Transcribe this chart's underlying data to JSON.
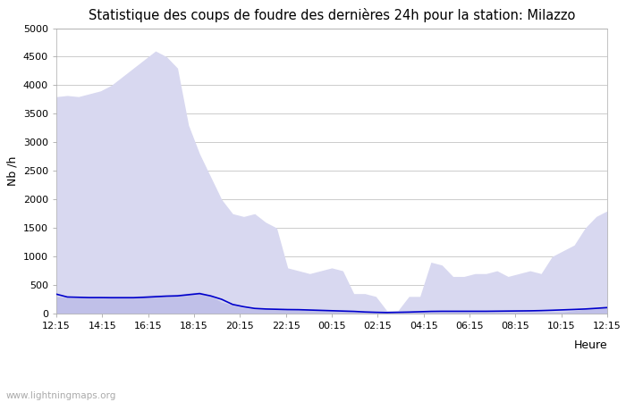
{
  "title": "Statistique des coups de foudre des dernières 24h pour la station: Milazzo",
  "xlabel": "Heure",
  "ylabel": "Nb /h",
  "xlabels": [
    "12:15",
    "14:15",
    "16:15",
    "18:15",
    "20:15",
    "22:15",
    "00:15",
    "02:15",
    "04:15",
    "06:15",
    "08:15",
    "10:15",
    "12:15"
  ],
  "ylim": [
    0,
    5000
  ],
  "yticks": [
    0,
    500,
    1000,
    1500,
    2000,
    2500,
    3000,
    3500,
    4000,
    4500,
    5000
  ],
  "bg_color": "#ffffff",
  "plot_bg_color": "#ffffff",
  "grid_color": "#cccccc",
  "watermark": "www.lightningmaps.org",
  "total_foudre_color": "#d8d8f0",
  "milazzo_color": "#c0c0e8",
  "moyenne_color": "#0000cc",
  "total_foudre_values": [
    3800,
    3820,
    3800,
    3850,
    3900,
    4000,
    4150,
    4300,
    4450,
    4600,
    4500,
    4300,
    3300,
    2800,
    2400,
    2000,
    1750,
    1700,
    1750,
    1600,
    1500,
    800,
    750,
    700,
    750,
    800,
    750,
    350,
    350,
    300,
    50,
    50,
    300,
    300,
    900,
    850,
    650,
    650,
    700,
    700,
    750,
    650,
    700,
    750,
    700,
    1000,
    1100,
    1200,
    1500,
    1700,
    1800
  ],
  "milazzo_values": [
    300,
    280,
    280,
    290,
    290,
    300,
    300,
    300,
    320,
    330,
    330,
    340,
    360,
    380,
    310,
    200,
    150,
    100,
    80,
    80,
    80,
    80,
    80,
    70,
    60,
    50,
    50,
    30,
    20,
    20,
    20,
    30,
    30,
    30,
    30,
    30,
    30,
    30,
    30,
    30,
    30,
    30,
    30,
    30,
    30,
    30,
    30,
    50,
    80,
    100,
    120
  ],
  "moyenne_values": [
    340,
    290,
    285,
    280,
    280,
    278,
    278,
    278,
    285,
    295,
    305,
    310,
    330,
    350,
    310,
    250,
    160,
    120,
    90,
    80,
    75,
    70,
    68,
    62,
    56,
    50,
    44,
    38,
    28,
    22,
    18,
    22,
    26,
    32,
    38,
    40,
    40,
    40,
    40,
    40,
    42,
    44,
    46,
    48,
    52,
    58,
    65,
    72,
    80,
    92,
    105
  ],
  "n_points": 51
}
